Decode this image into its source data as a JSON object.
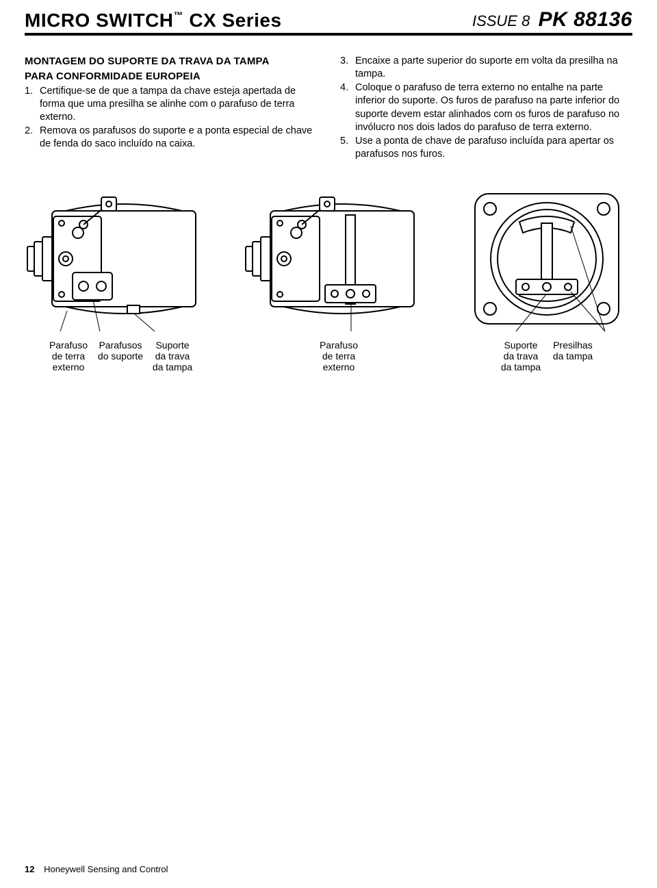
{
  "header": {
    "product_line": "MICRO SWITCH",
    "tm": "™",
    "series": "CX Series",
    "issue_label": "ISSUE 8",
    "pk": "PK 88136"
  },
  "left_col": {
    "title1": "MONTAGEM DO SUPORTE DA TRAVA DA TAMPA",
    "title2": "PARA CONFORMIDADE EUROPEIA",
    "steps": [
      {
        "n": "1.",
        "t": "Certifique-se de que a tampa da chave esteja apertada de forma que uma presilha se alinhe com o parafuso de terra externo."
      },
      {
        "n": "2.",
        "t": "Remova os parafusos do suporte e a ponta especial de chave de fenda do saco incluído na caixa."
      }
    ]
  },
  "right_col": {
    "steps": [
      {
        "n": "3.",
        "t": "Encaixe a parte superior do suporte em volta da presilha na tampa."
      },
      {
        "n": "4.",
        "t": "Coloque o parafuso de terra externo no entalhe na parte inferior do suporte. Os furos de parafuso na parte inferior do suporte devem estar alinhados com os furos de parafuso no invólucro nos dois lados do parafuso de terra externo."
      },
      {
        "n": "5.",
        "t": "Use a ponta de chave de parafuso incluída para apertar os parafusos nos furos."
      }
    ]
  },
  "diagram": {
    "labels_left": [
      "Parafuso\nde terra\nexterno",
      "Parafusos\ndo suporte",
      "Suporte\nda trava\nda tampa"
    ],
    "labels_mid": [
      "Parafuso\nde terra\nexterno"
    ],
    "labels_right": [
      "Suporte\nda trava\nda tampa",
      "Presilhas\nda tampa"
    ],
    "stroke": "#000000",
    "fill": "#ffffff",
    "stroke_width": 2
  },
  "footer": {
    "page": "12",
    "text": "Honeywell Sensing and Control"
  }
}
